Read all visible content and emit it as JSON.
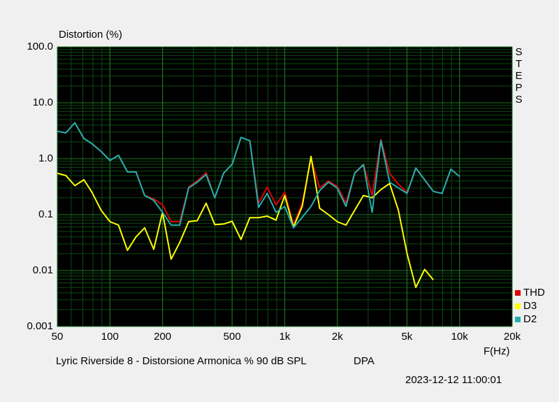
{
  "chart_data": {
    "type": "line",
    "title": "Distortion (%)",
    "x_label": "F(Hz)",
    "side_label": "STEPS",
    "caption": "Lyric Riverside 8 - Distorsione Armonica % 90 dB SPL",
    "caption_tag": "DPA",
    "timestamp": "2023-12-12 11:00:01",
    "x_log": true,
    "y_log": true,
    "grid": true,
    "legend": "lower right",
    "xlim": [
      50,
      20000
    ],
    "ylim": [
      0.001,
      100
    ],
    "xticks": [
      50,
      100,
      200,
      500,
      {
        "value": 1000,
        "label": "1k"
      },
      {
        "value": 2000,
        "label": "2k"
      },
      {
        "value": 5000,
        "label": "5k"
      },
      {
        "value": 10000,
        "label": "10k"
      },
      {
        "value": 20000,
        "label": "20k"
      }
    ],
    "yticks": [
      {
        "value": 100,
        "label": "100.0"
      },
      {
        "value": 10,
        "label": "10.0"
      },
      {
        "value": 1,
        "label": "1.0"
      },
      0.1,
      0.01,
      0.001
    ],
    "x": [
      50,
      56,
      63,
      71,
      79,
      89,
      100,
      112,
      126,
      141,
      158,
      178,
      200,
      224,
      251,
      282,
      316,
      355,
      398,
      447,
      500,
      562,
      631,
      708,
      794,
      891,
      1000,
      1122,
      1259,
      1413,
      1585,
      1778,
      1995,
      2239,
      2512,
      2818,
      3162,
      3548,
      3981,
      4467,
      5012,
      5623,
      6310,
      7079,
      7943,
      8913,
      10000
    ],
    "series": [
      {
        "name": "THD",
        "color": "#e00000",
        "values": [
          3.1,
          2.9,
          4.4,
          2.3,
          1.85,
          1.35,
          0.93,
          1.15,
          0.58,
          0.58,
          0.22,
          0.19,
          0.15,
          0.075,
          0.075,
          0.31,
          0.4,
          0.56,
          0.2,
          0.55,
          0.8,
          2.4,
          2.1,
          0.16,
          0.31,
          0.15,
          0.25,
          0.065,
          0.16,
          1.0,
          0.3,
          0.4,
          0.32,
          0.16,
          0.56,
          0.8,
          0.22,
          2.2,
          0.55,
          0.35,
          0.25,
          0.68,
          0.42,
          0.26,
          0.24,
          0.65,
          0.48
        ]
      },
      {
        "name": "D3",
        "color": "#ffff00",
        "values": [
          0.55,
          0.5,
          0.33,
          0.42,
          0.25,
          0.12,
          0.075,
          0.065,
          0.023,
          0.04,
          0.058,
          0.024,
          0.11,
          0.016,
          0.032,
          0.075,
          0.078,
          0.16,
          0.066,
          0.068,
          0.076,
          0.036,
          0.088,
          0.088,
          0.094,
          0.08,
          0.22,
          0.06,
          0.14,
          1.1,
          0.13,
          0.1,
          0.075,
          0.065,
          0.12,
          0.22,
          0.2,
          0.28,
          0.36,
          0.12,
          0.02,
          0.005,
          0.0105,
          0.0068,
          null,
          null,
          null
        ]
      },
      {
        "name": "D2",
        "color": "#20b0b0",
        "values": [
          3.1,
          2.9,
          4.4,
          2.3,
          1.85,
          1.35,
          0.93,
          1.15,
          0.58,
          0.58,
          0.22,
          0.18,
          0.11,
          0.065,
          0.065,
          0.3,
          0.38,
          0.52,
          0.2,
          0.55,
          0.8,
          2.4,
          2.1,
          0.135,
          0.24,
          0.11,
          0.14,
          0.058,
          0.09,
          0.14,
          0.27,
          0.38,
          0.3,
          0.14,
          0.55,
          0.78,
          0.11,
          2.1,
          0.38,
          0.3,
          0.24,
          0.68,
          0.42,
          0.26,
          0.24,
          0.65,
          0.48
        ]
      }
    ]
  }
}
